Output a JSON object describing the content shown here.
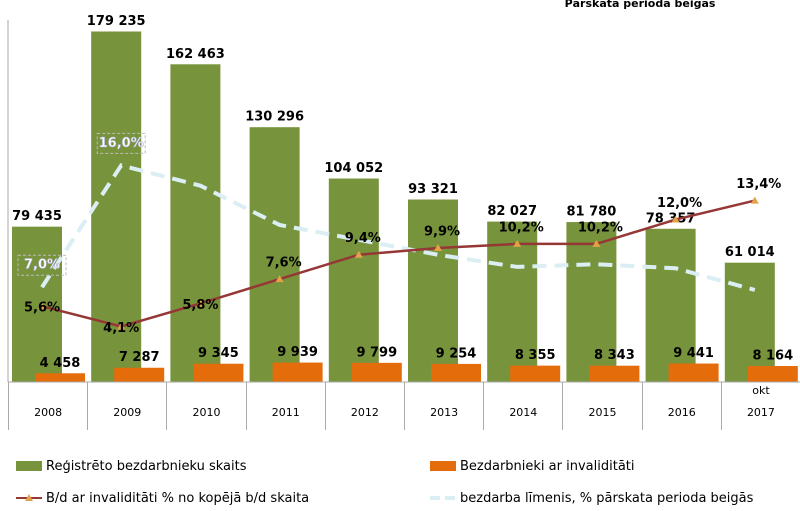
{
  "chart_data": {
    "type": "bar-line",
    "title": "Pārskata perioda beigās",
    "categories": [
      "2008",
      "2009",
      "2010",
      "2011",
      "2012",
      "2013",
      "2014",
      "2015",
      "2016",
      "okt 2017"
    ],
    "ylim": [
      0,
      180000
    ],
    "y2lim": [
      0,
      26
    ],
    "series": [
      {
        "name": "Reģistrēto bezdarbnieku skaits",
        "type": "bar",
        "color": "#77933c",
        "values": [
          79435,
          179235,
          162463,
          130296,
          104052,
          93321,
          82027,
          81780,
          78357,
          61014
        ],
        "value_labels": [
          "79 435",
          "179 235",
          "162 463",
          "130 296",
          "104 052",
          "93 321",
          "82 027",
          "81 780",
          "78 357",
          "61 014"
        ]
      },
      {
        "name": "Bezdarbnieki ar invaliditāti",
        "type": "bar",
        "color": "#e46c0a",
        "values": [
          4458,
          7287,
          9345,
          9939,
          9799,
          9254,
          8355,
          8343,
          9441,
          8164
        ],
        "value_labels": [
          "4 458",
          "7 287",
          "9 345",
          "9 939",
          "9 799",
          "9 254",
          "8 355",
          "8 343",
          "9 441",
          "8 164"
        ]
      },
      {
        "name": "B/d ar invaliditāti % no kopējā b/d skaita",
        "type": "line",
        "axis": "y2",
        "color": "#953735",
        "marker_color": "#e3a14a",
        "values": [
          5.6,
          4.1,
          5.8,
          7.6,
          9.4,
          9.9,
          10.2,
          10.2,
          12.0,
          13.4
        ],
        "value_labels": [
          "5,6%",
          "4,1%",
          "5,8%",
          "7,6%",
          "9,4%",
          "9,9%",
          "10,2%",
          "10,2%",
          "12,0%",
          "13,4%"
        ]
      },
      {
        "name": "bezdarba līmenis, % pārskata perioda beigās",
        "type": "dashed-line",
        "axis": "y2",
        "color": "#dbeef4",
        "values": [
          7.0,
          16.0,
          14.5,
          11.6,
          10.5,
          9.4,
          8.5,
          8.7,
          8.4,
          6.8
        ],
        "value_labels": [
          "7,0%",
          "16,0%",
          null,
          null,
          null,
          null,
          null,
          null,
          null,
          null
        ]
      }
    ]
  }
}
